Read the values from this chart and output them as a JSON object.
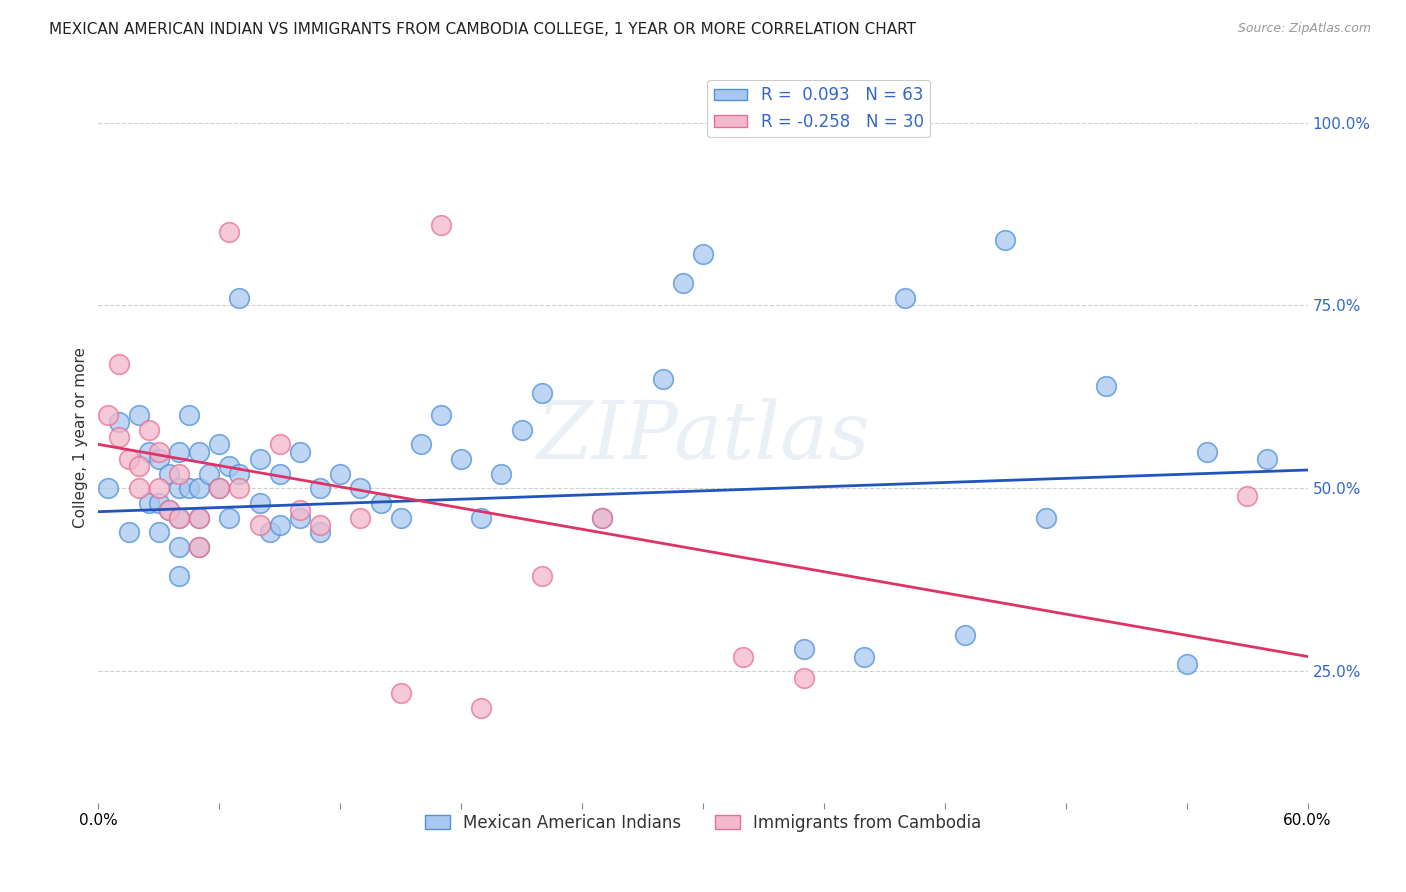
{
  "title": "MEXICAN AMERICAN INDIAN VS IMMIGRANTS FROM CAMBODIA COLLEGE, 1 YEAR OR MORE CORRELATION CHART",
  "source": "Source: ZipAtlas.com",
  "ylabel": "College, 1 year or more",
  "y_tick_labels": [
    "25.0%",
    "50.0%",
    "75.0%",
    "100.0%"
  ],
  "y_tick_values": [
    0.25,
    0.5,
    0.75,
    1.0
  ],
  "xlim": [
    0.0,
    0.6
  ],
  "ylim": [
    0.07,
    1.07
  ],
  "blue_r": 0.093,
  "blue_n": 63,
  "pink_r": -0.258,
  "pink_n": 30,
  "legend_label_blue": "Mexican American Indians",
  "legend_label_pink": "Immigrants from Cambodia",
  "blue_color": "#a8c8f0",
  "pink_color": "#f4b8cc",
  "blue_edge_color": "#5090d8",
  "pink_edge_color": "#e87090",
  "blue_line_color": "#2255bb",
  "pink_line_color": "#dd3366",
  "blue_line_y0": 0.468,
  "blue_line_y1": 0.525,
  "pink_line_y0": 0.56,
  "pink_line_y1": 0.27,
  "watermark": "ZIPatlas",
  "blue_points_x": [
    0.005,
    0.01,
    0.015,
    0.02,
    0.025,
    0.025,
    0.03,
    0.03,
    0.03,
    0.035,
    0.035,
    0.04,
    0.04,
    0.04,
    0.04,
    0.04,
    0.045,
    0.045,
    0.05,
    0.05,
    0.05,
    0.05,
    0.055,
    0.06,
    0.06,
    0.065,
    0.065,
    0.07,
    0.07,
    0.08,
    0.08,
    0.085,
    0.09,
    0.09,
    0.1,
    0.1,
    0.11,
    0.11,
    0.12,
    0.13,
    0.14,
    0.15,
    0.16,
    0.17,
    0.18,
    0.19,
    0.2,
    0.21,
    0.22,
    0.25,
    0.28,
    0.29,
    0.3,
    0.35,
    0.38,
    0.4,
    0.43,
    0.45,
    0.47,
    0.5,
    0.54,
    0.55,
    0.58
  ],
  "blue_points_y": [
    0.5,
    0.59,
    0.44,
    0.6,
    0.55,
    0.48,
    0.54,
    0.48,
    0.44,
    0.52,
    0.47,
    0.55,
    0.5,
    0.46,
    0.42,
    0.38,
    0.6,
    0.5,
    0.55,
    0.5,
    0.46,
    0.42,
    0.52,
    0.56,
    0.5,
    0.53,
    0.46,
    0.76,
    0.52,
    0.54,
    0.48,
    0.44,
    0.52,
    0.45,
    0.55,
    0.46,
    0.5,
    0.44,
    0.52,
    0.5,
    0.48,
    0.46,
    0.56,
    0.6,
    0.54,
    0.46,
    0.52,
    0.58,
    0.63,
    0.46,
    0.65,
    0.78,
    0.82,
    0.28,
    0.27,
    0.76,
    0.3,
    0.84,
    0.46,
    0.64,
    0.26,
    0.55,
    0.54
  ],
  "pink_points_x": [
    0.005,
    0.01,
    0.01,
    0.015,
    0.02,
    0.02,
    0.025,
    0.03,
    0.03,
    0.035,
    0.04,
    0.04,
    0.05,
    0.05,
    0.06,
    0.065,
    0.07,
    0.08,
    0.09,
    0.1,
    0.11,
    0.13,
    0.15,
    0.17,
    0.19,
    0.22,
    0.25,
    0.32,
    0.35,
    0.57
  ],
  "pink_points_y": [
    0.6,
    0.67,
    0.57,
    0.54,
    0.53,
    0.5,
    0.58,
    0.55,
    0.5,
    0.47,
    0.52,
    0.46,
    0.46,
    0.42,
    0.5,
    0.85,
    0.5,
    0.45,
    0.56,
    0.47,
    0.45,
    0.46,
    0.22,
    0.86,
    0.2,
    0.38,
    0.46,
    0.27,
    0.24,
    0.49
  ],
  "grid_color": "#d0d0d0",
  "background_color": "#ffffff",
  "title_fontsize": 11,
  "axis_label_fontsize": 11,
  "tick_fontsize": 11,
  "source_fontsize": 9,
  "legend_fontsize": 12
}
